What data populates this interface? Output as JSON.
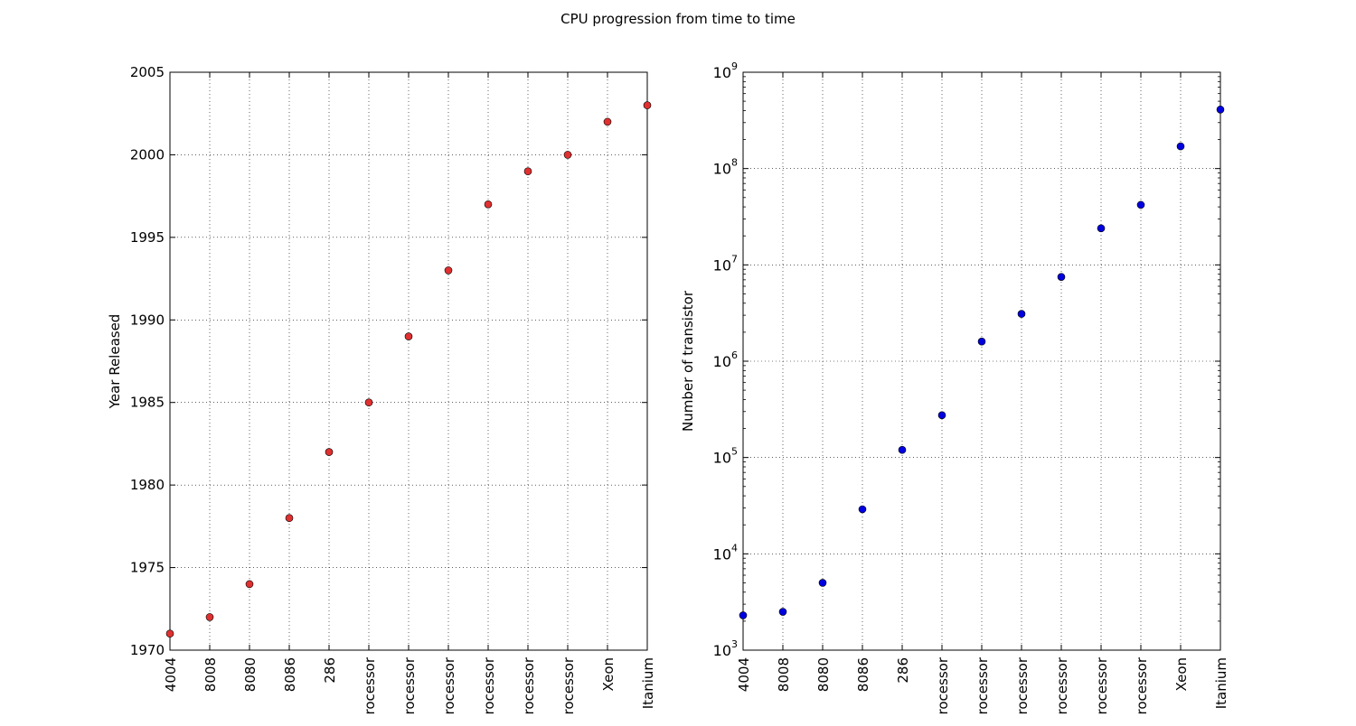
{
  "figure": {
    "suptitle": "CPU progression from time to time"
  },
  "chart_data": [
    {
      "type": "scatter",
      "xlabel": "",
      "ylabel": "Year Released",
      "ylim": [
        1970,
        2005
      ],
      "yticks": [
        1970,
        1975,
        1980,
        1985,
        1990,
        1995,
        2000,
        2005
      ],
      "ytick_labels": [
        "1970",
        "1975",
        "1980",
        "1985",
        "1990",
        "1995",
        "2000",
        "2005"
      ],
      "yscale": "linear",
      "grid": true,
      "categories": [
        "4004",
        "8008",
        "8080",
        "8086",
        "286",
        "Processor",
        "Processor",
        "Processor",
        "Processor",
        "Processor",
        "Processor",
        "Xeon",
        "Itanium"
      ],
      "category_labels_visible": [
        "4004",
        "8008",
        "8080",
        "8086",
        "286",
        "rocessor",
        "rocessor",
        "rocessor",
        "rocessor",
        "rocessor",
        "rocessor",
        "Xeon",
        "Itanium"
      ],
      "values": [
        1971,
        1972,
        1974,
        1978,
        1982,
        1985,
        1989,
        1993,
        1997,
        1999,
        2000,
        2002,
        2003
      ],
      "marker_color": "#e03030"
    },
    {
      "type": "scatter",
      "xlabel": "",
      "ylabel": "Number of transistor",
      "yscale": "log",
      "ylim": [
        1000,
        1000000000
      ],
      "yticks": [
        1000,
        10000,
        100000,
        1000000,
        10000000,
        100000000,
        1000000000
      ],
      "ytick_labels": [
        [
          "10",
          "3"
        ],
        [
          "10",
          "4"
        ],
        [
          "10",
          "5"
        ],
        [
          "10",
          "6"
        ],
        [
          "10",
          "7"
        ],
        [
          "10",
          "8"
        ],
        [
          "10",
          "9"
        ]
      ],
      "grid": true,
      "categories": [
        "4004",
        "8008",
        "8080",
        "8086",
        "286",
        "Processor",
        "Processor",
        "Processor",
        "Processor",
        "Processor",
        "Processor",
        "Xeon",
        "Itanium"
      ],
      "category_labels_visible": [
        "4004",
        "8008",
        "8080",
        "8086",
        "286",
        "rocessor",
        "rocessor",
        "rocessor",
        "rocessor",
        "rocessor",
        "rocessor",
        "Xeon",
        "Itanium"
      ],
      "values": [
        2300,
        2500,
        5000,
        29000,
        120000,
        275000,
        1600000,
        3100000,
        7500000,
        24000000,
        42000000,
        170000000,
        410000000
      ],
      "marker_color": "#0000e0"
    }
  ]
}
